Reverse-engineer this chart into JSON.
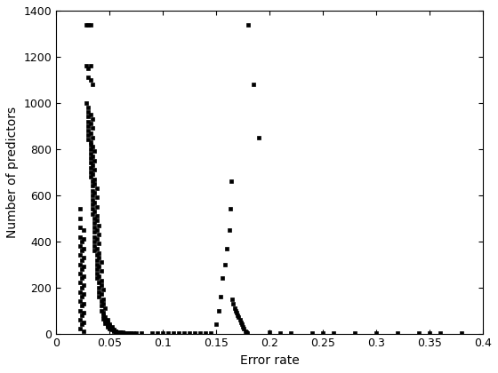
{
  "xlabel": "Error rate",
  "ylabel": "Number of predictors",
  "xlim": [
    0,
    0.4
  ],
  "ylim": [
    0,
    1400
  ],
  "xticks": [
    0,
    0.05,
    0.1,
    0.15,
    0.2,
    0.25,
    0.3,
    0.35,
    0.4
  ],
  "yticks": [
    0,
    200,
    400,
    600,
    800,
    1000,
    1200,
    1400
  ],
  "xticklabels": [
    "0",
    "0.05",
    "0.1",
    "0.15",
    "0.2",
    "0.25",
    "0.3",
    "0.35",
    "0.4"
  ],
  "yticklabels": [
    "0",
    "200",
    "400",
    "600",
    "800",
    "1000",
    "1200",
    "1400"
  ],
  "marker": "s",
  "markersize": 2.5,
  "color": "#000000",
  "n_line_objects": 25,
  "points": [
    [
      0.028,
      1340
    ],
    [
      0.03,
      1340
    ],
    [
      0.032,
      1340
    ],
    [
      0.028,
      1160
    ],
    [
      0.032,
      1160
    ],
    [
      0.03,
      1150
    ],
    [
      0.034,
      1080
    ],
    [
      0.03,
      1110
    ],
    [
      0.032,
      1100
    ],
    [
      0.028,
      1000
    ],
    [
      0.03,
      980
    ],
    [
      0.03,
      960
    ],
    [
      0.032,
      950
    ],
    [
      0.03,
      940
    ],
    [
      0.034,
      930
    ],
    [
      0.03,
      920
    ],
    [
      0.032,
      910
    ],
    [
      0.03,
      900
    ],
    [
      0.034,
      890
    ],
    [
      0.03,
      880
    ],
    [
      0.032,
      870
    ],
    [
      0.03,
      860
    ],
    [
      0.034,
      850
    ],
    [
      0.03,
      840
    ],
    [
      0.032,
      830
    ],
    [
      0.032,
      820
    ],
    [
      0.034,
      810
    ],
    [
      0.032,
      800
    ],
    [
      0.036,
      790
    ],
    [
      0.032,
      780
    ],
    [
      0.034,
      770
    ],
    [
      0.032,
      760
    ],
    [
      0.036,
      750
    ],
    [
      0.032,
      740
    ],
    [
      0.034,
      730
    ],
    [
      0.032,
      720
    ],
    [
      0.036,
      710
    ],
    [
      0.032,
      700
    ],
    [
      0.034,
      690
    ],
    [
      0.032,
      680
    ],
    [
      0.036,
      670
    ],
    [
      0.034,
      660
    ],
    [
      0.036,
      650
    ],
    [
      0.034,
      640
    ],
    [
      0.038,
      630
    ],
    [
      0.034,
      620
    ],
    [
      0.036,
      610
    ],
    [
      0.034,
      600
    ],
    [
      0.038,
      590
    ],
    [
      0.034,
      580
    ],
    [
      0.036,
      570
    ],
    [
      0.034,
      560
    ],
    [
      0.038,
      550
    ],
    [
      0.034,
      540
    ],
    [
      0.036,
      530
    ],
    [
      0.034,
      520
    ],
    [
      0.038,
      510
    ],
    [
      0.036,
      500
    ],
    [
      0.038,
      490
    ],
    [
      0.036,
      480
    ],
    [
      0.04,
      470
    ],
    [
      0.036,
      460
    ],
    [
      0.038,
      450
    ],
    [
      0.036,
      440
    ],
    [
      0.04,
      430
    ],
    [
      0.036,
      420
    ],
    [
      0.038,
      410
    ],
    [
      0.036,
      400
    ],
    [
      0.04,
      390
    ],
    [
      0.036,
      380
    ],
    [
      0.038,
      370
    ],
    [
      0.036,
      360
    ],
    [
      0.04,
      350
    ],
    [
      0.038,
      340
    ],
    [
      0.04,
      330
    ],
    [
      0.038,
      320
    ],
    [
      0.042,
      310
    ],
    [
      0.038,
      300
    ],
    [
      0.04,
      290
    ],
    [
      0.038,
      280
    ],
    [
      0.042,
      270
    ],
    [
      0.038,
      260
    ],
    [
      0.04,
      250
    ],
    [
      0.038,
      240
    ],
    [
      0.042,
      230
    ],
    [
      0.04,
      220
    ],
    [
      0.042,
      210
    ],
    [
      0.04,
      200
    ],
    [
      0.044,
      190
    ],
    [
      0.04,
      180
    ],
    [
      0.042,
      170
    ],
    [
      0.04,
      160
    ],
    [
      0.044,
      150
    ],
    [
      0.042,
      140
    ],
    [
      0.044,
      130
    ],
    [
      0.042,
      120
    ],
    [
      0.046,
      110
    ],
    [
      0.042,
      100
    ],
    [
      0.044,
      90
    ],
    [
      0.044,
      80
    ],
    [
      0.046,
      70
    ],
    [
      0.044,
      65
    ],
    [
      0.048,
      60
    ],
    [
      0.046,
      55
    ],
    [
      0.048,
      50
    ],
    [
      0.046,
      45
    ],
    [
      0.05,
      40
    ],
    [
      0.048,
      38
    ],
    [
      0.05,
      35
    ],
    [
      0.048,
      30
    ],
    [
      0.052,
      28
    ],
    [
      0.05,
      25
    ],
    [
      0.052,
      22
    ],
    [
      0.05,
      20
    ],
    [
      0.054,
      18
    ],
    [
      0.052,
      16
    ],
    [
      0.054,
      14
    ],
    [
      0.054,
      12
    ],
    [
      0.056,
      10
    ],
    [
      0.056,
      9
    ],
    [
      0.058,
      8
    ],
    [
      0.058,
      7
    ],
    [
      0.06,
      6
    ],
    [
      0.06,
      5
    ],
    [
      0.062,
      5
    ],
    [
      0.064,
      4
    ],
    [
      0.066,
      4
    ],
    [
      0.068,
      3
    ],
    [
      0.07,
      3
    ],
    [
      0.072,
      2
    ],
    [
      0.075,
      2
    ],
    [
      0.022,
      540
    ],
    [
      0.022,
      500
    ],
    [
      0.022,
      460
    ],
    [
      0.022,
      420
    ],
    [
      0.022,
      380
    ],
    [
      0.022,
      340
    ],
    [
      0.022,
      300
    ],
    [
      0.022,
      260
    ],
    [
      0.022,
      220
    ],
    [
      0.022,
      180
    ],
    [
      0.022,
      140
    ],
    [
      0.022,
      100
    ],
    [
      0.022,
      60
    ],
    [
      0.022,
      20
    ],
    [
      0.024,
      400
    ],
    [
      0.024,
      360
    ],
    [
      0.024,
      320
    ],
    [
      0.024,
      280
    ],
    [
      0.024,
      240
    ],
    [
      0.024,
      200
    ],
    [
      0.024,
      160
    ],
    [
      0.024,
      120
    ],
    [
      0.024,
      80
    ],
    [
      0.024,
      40
    ],
    [
      0.026,
      450
    ],
    [
      0.026,
      410
    ],
    [
      0.026,
      370
    ],
    [
      0.026,
      330
    ],
    [
      0.026,
      290
    ],
    [
      0.026,
      250
    ],
    [
      0.026,
      210
    ],
    [
      0.026,
      170
    ],
    [
      0.026,
      130
    ],
    [
      0.026,
      90
    ],
    [
      0.026,
      50
    ],
    [
      0.026,
      10
    ],
    [
      0.08,
      2
    ],
    [
      0.09,
      2
    ],
    [
      0.1,
      2
    ],
    [
      0.11,
      1
    ],
    [
      0.12,
      1
    ],
    [
      0.13,
      1
    ],
    [
      0.14,
      1
    ],
    [
      0.15,
      40
    ],
    [
      0.152,
      100
    ],
    [
      0.154,
      160
    ],
    [
      0.156,
      240
    ],
    [
      0.158,
      300
    ],
    [
      0.16,
      370
    ],
    [
      0.162,
      450
    ],
    [
      0.163,
      540
    ],
    [
      0.164,
      660
    ],
    [
      0.165,
      150
    ],
    [
      0.166,
      130
    ],
    [
      0.167,
      110
    ],
    [
      0.168,
      100
    ],
    [
      0.169,
      90
    ],
    [
      0.17,
      80
    ],
    [
      0.171,
      70
    ],
    [
      0.172,
      60
    ],
    [
      0.173,
      50
    ],
    [
      0.174,
      40
    ],
    [
      0.175,
      30
    ],
    [
      0.176,
      20
    ],
    [
      0.177,
      10
    ],
    [
      0.178,
      5
    ],
    [
      0.179,
      2
    ],
    [
      0.18,
      1340
    ],
    [
      0.185,
      1080
    ],
    [
      0.19,
      850
    ],
    [
      0.2,
      5
    ],
    [
      0.21,
      4
    ],
    [
      0.22,
      3
    ],
    [
      0.24,
      2
    ],
    [
      0.26,
      2
    ],
    [
      0.28,
      1
    ],
    [
      0.3,
      1
    ],
    [
      0.32,
      1
    ],
    [
      0.34,
      1
    ],
    [
      0.36,
      1
    ],
    [
      0.38,
      1
    ],
    [
      0.095,
      1
    ],
    [
      0.105,
      1
    ],
    [
      0.115,
      1
    ],
    [
      0.125,
      1
    ],
    [
      0.135,
      1
    ],
    [
      0.145,
      1
    ],
    [
      0.25,
      1
    ],
    [
      0.35,
      1
    ]
  ]
}
